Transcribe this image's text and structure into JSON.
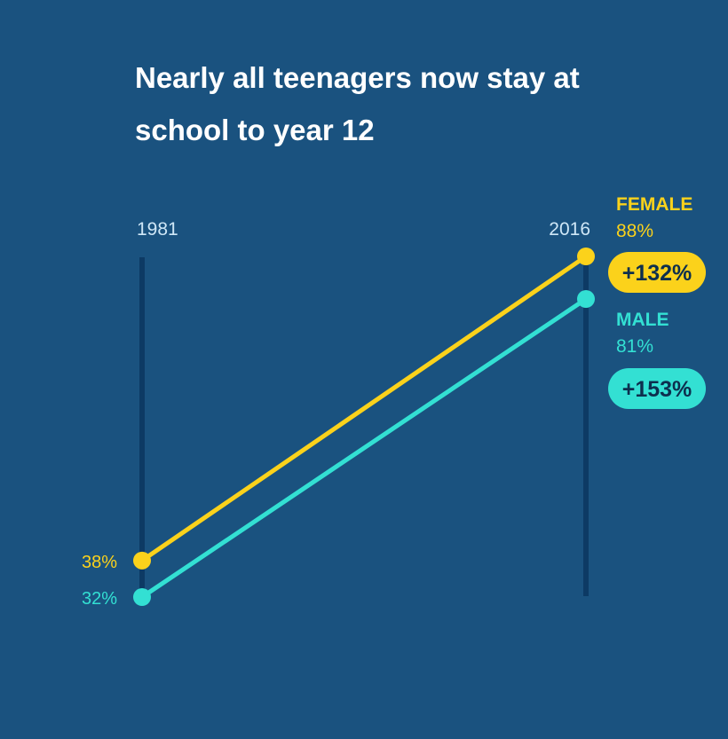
{
  "chart_data": {
    "type": "line",
    "title": "Nearly all teenagers now stay at school to year 12",
    "x": [
      "1981",
      "2016"
    ],
    "series": [
      {
        "name": "FEMALE",
        "values": [
          38,
          88
        ],
        "labels": [
          "38%",
          "88%"
        ],
        "change": "+132%",
        "color": "#fbd21b"
      },
      {
        "name": "MALE",
        "values": [
          32,
          81
        ],
        "labels": [
          "32%",
          "81%"
        ],
        "change": "+153%",
        "color": "#33e0d3"
      }
    ],
    "ylim": [
      32,
      88
    ],
    "grid": false,
    "legend": "right"
  },
  "colors": {
    "background": "#1a527f",
    "axis": "#0d3a64",
    "year_label": "#cfe7f7",
    "badge_text": "#0d2f4e"
  }
}
